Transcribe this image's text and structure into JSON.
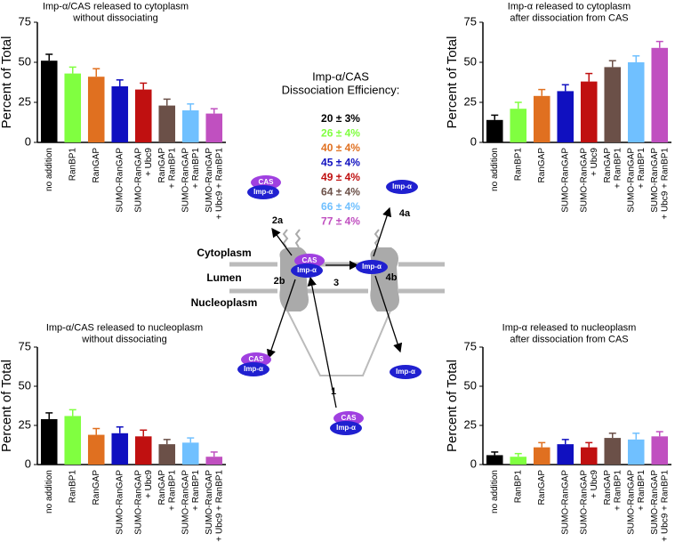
{
  "chart_data": [
    {
      "type": "bar",
      "title": "Imp-α/CAS released to cytoplasm\nwithout dissociating",
      "ylabel": "Percent of Total",
      "categories": [
        "no addition",
        "RanBP1",
        "RanGAP",
        "SUMO-RanGAP",
        "SUMO-RanGAP\n+ Ubc9",
        "RanGAP\n+ RanBP1",
        "SUMO-RanGAP\n+ RanBP1",
        "SUMO-RanGAP\n+ Ubc9 + RanBP1"
      ],
      "values": [
        51,
        43,
        41,
        35,
        33,
        23,
        20,
        18
      ],
      "errors": [
        4,
        4,
        5,
        4,
        4,
        4,
        4,
        3
      ],
      "colors": [
        "#000000",
        "#80ff40",
        "#e07020",
        "#1010c0",
        "#c01010",
        "#6b5048",
        "#70c0ff",
        "#c050c0"
      ],
      "ylim": [
        0,
        75
      ],
      "yticks": [
        0,
        25,
        50,
        75
      ]
    },
    {
      "type": "bar",
      "title": "Imp-α released to cytoplasm\nafter dissociation from CAS",
      "ylabel": "Percent of Total",
      "categories": [
        "no addition",
        "RanBP1",
        "RanGAP",
        "SUMO-RanGAP",
        "SUMO-RanGAP\n+ Ubc9",
        "RanGAP\n+ RanBP1",
        "SUMO-RanGAP\n+ RanBP1",
        "SUMO-RanGAP\n+ Ubc9 + RanBP1"
      ],
      "values": [
        14,
        21,
        29,
        32,
        38,
        47,
        50,
        59
      ],
      "errors": [
        3,
        4,
        4,
        4,
        5,
        4,
        4,
        4
      ],
      "colors": [
        "#000000",
        "#80ff40",
        "#e07020",
        "#1010c0",
        "#c01010",
        "#6b5048",
        "#70c0ff",
        "#c050c0"
      ],
      "ylim": [
        0,
        75
      ],
      "yticks": [
        0,
        25,
        50,
        75
      ]
    },
    {
      "type": "bar",
      "title": "Imp-α/CAS released to nucleoplasm\nwithout dissociating",
      "ylabel": "Percent of Total",
      "categories": [
        "no addition",
        "RanBP1",
        "RanGAP",
        "SUMO-RanGAP",
        "SUMO-RanGAP\n+ Ubc9",
        "RanGAP\n+ RanBP1",
        "SUMO-RanGAP\n+ RanBP1",
        "SUMO-RanGAP\n+ Ubc9 + RanBP1"
      ],
      "values": [
        29,
        31,
        19,
        20,
        18,
        13,
        14,
        5
      ],
      "errors": [
        4,
        4,
        4,
        4,
        4,
        3,
        3,
        3
      ],
      "colors": [
        "#000000",
        "#80ff40",
        "#e07020",
        "#1010c0",
        "#c01010",
        "#6b5048",
        "#70c0ff",
        "#c050c0"
      ],
      "ylim": [
        0,
        75
      ],
      "yticks": [
        0,
        25,
        50,
        75
      ]
    },
    {
      "type": "bar",
      "title": "Imp-α released to nucleoplasm\nafter dissociation from CAS",
      "ylabel": "Percent of Total",
      "categories": [
        "no addition",
        "RanBP1",
        "RanGAP",
        "SUMO-RanGAP",
        "SUMO-RanGAP\n+ Ubc9",
        "RanGAP\n+ RanBP1",
        "SUMO-RanGAP\n+ RanBP1",
        "SUMO-RanGAP\n+ Ubc9 + RanBP1"
      ],
      "values": [
        6,
        5,
        11,
        13,
        11,
        17,
        16,
        18
      ],
      "errors": [
        2,
        2,
        3,
        3,
        3,
        3,
        4,
        3
      ],
      "colors": [
        "#000000",
        "#80ff40",
        "#e07020",
        "#1010c0",
        "#c01010",
        "#6b5048",
        "#70c0ff",
        "#c050c0"
      ],
      "ylim": [
        0,
        75
      ],
      "yticks": [
        0,
        25,
        50,
        75
      ]
    }
  ],
  "diagram": {
    "heading": "Imp-α/CAS\nDissociation Efficiency:",
    "efficiencies": [
      "20 ± 3%",
      "26 ± 4%",
      "40 ± 4%",
      "45 ± 4%",
      "49 ± 4%",
      "64 ± 4%",
      "66 ± 4%",
      "77 ± 4%"
    ],
    "compartments": [
      "Cytoplasm",
      "Lumen",
      "Nucleoplasm"
    ],
    "steps": [
      "1",
      "2a",
      "2b",
      "3",
      "4a",
      "4b"
    ],
    "proteins": [
      "CAS",
      "Imp-α"
    ]
  }
}
